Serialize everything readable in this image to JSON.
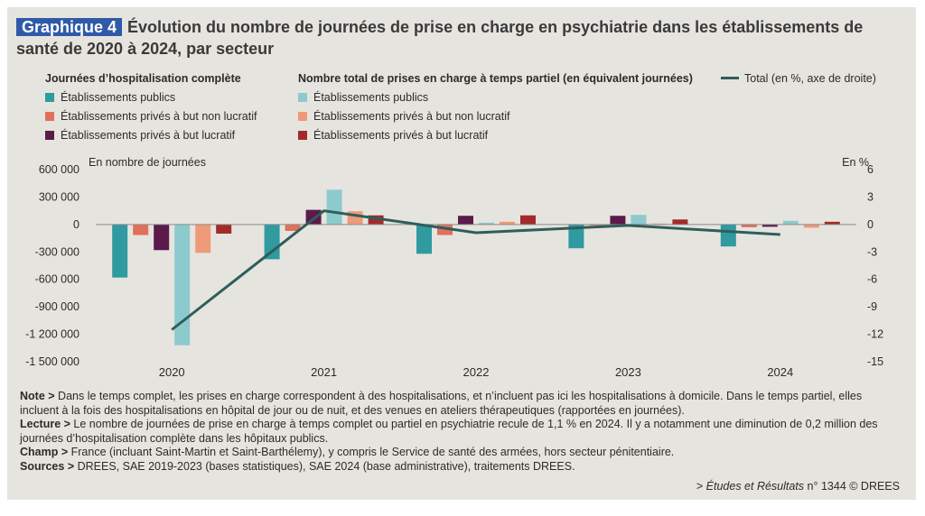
{
  "header": {
    "badge": "Graphique 4",
    "title": "Évolution du nombre de journées de prise en charge en psychiatrie dans les établissements de santé de 2020 à 2024, par secteur"
  },
  "legend": {
    "group1_title": "Journées d’hospitalisation complète",
    "group2_title": "Nombre total de prises en charge à temps partiel (en équivalent journées)",
    "total_label": "Total (en %, axe de droite)"
  },
  "notes": {
    "note_label": "Note >",
    "note_text": "Dans le temps complet, les prises en charge correspondent à des hospitalisations, et n’incluent pas ici les hospitalisations à domicile. Dans le temps partiel, elles incluent à la fois des hospitalisations en hôpital de jour ou de nuit, et des venues en ateliers thérapeutiques (rapportées en journées).",
    "lecture_label": "Lecture >",
    "lecture_text": "Le nombre de journées de prise en charge à temps complet ou partiel en psychiatrie recule de 1,1 % en 2024. Il y a notamment une diminution de 0,2 million des journées d’hospitalisation complète dans les hôpitaux publics.",
    "champ_label": "Champ >",
    "champ_text": "France (incluant Saint-Martin et Saint-Barthélemy), y compris le Service de santé des armées, hors secteur pénitentiaire.",
    "sources_label": "Sources >",
    "sources_text": "DREES, SAE 2019-2023 (bases statistiques), SAE 2024 (base administrative), traitements DREES.",
    "ref_prefix": "> ",
    "ref_italic": "Études et Résultats",
    "ref_suffix": " n° 1344 © DREES"
  },
  "chart_data": {
    "type": "bar",
    "left_axis_label": "En nombre de journées",
    "right_axis_label": "En %",
    "categories": [
      "2020",
      "2021",
      "2022",
      "2023",
      "2024"
    ],
    "ylim": [
      -1500000,
      600000
    ],
    "yticks": [
      600000,
      300000,
      0,
      -300000,
      -600000,
      -900000,
      -1200000,
      -1500000
    ],
    "ytick_labels": [
      "600 000",
      "300 000",
      "0",
      "-300 000",
      "-600 000",
      "-900 000",
      "-1 200 000",
      "-1 500 000"
    ],
    "y2lim": [
      -15,
      6
    ],
    "y2ticks": [
      6,
      3,
      0,
      -3,
      -6,
      -9,
      -12,
      -15
    ],
    "y2tick_labels": [
      "6",
      "3",
      "0",
      "-3",
      "-6",
      "-9",
      "-12",
      "-15"
    ],
    "grid": false,
    "series": [
      {
        "name": "Établissements publics",
        "group": "complete",
        "color": "#2f9aa0",
        "values": [
          -580000,
          -380000,
          -320000,
          -260000,
          -240000
        ]
      },
      {
        "name": "Établissements privés à but non lucratif",
        "group": "complete",
        "color": "#e0705a",
        "values": [
          -115000,
          -70000,
          -115000,
          -10000,
          -30000
        ]
      },
      {
        "name": "Établissements privés à but lucratif",
        "group": "complete",
        "color": "#5a1a4a",
        "values": [
          -280000,
          160000,
          95000,
          95000,
          -25000
        ]
      },
      {
        "name": "Établissements publics",
        "group": "partial",
        "color": "#8ccacd",
        "values": [
          -1320000,
          380000,
          20000,
          105000,
          40000
        ]
      },
      {
        "name": "Établissements privés à but non lucratif",
        "group": "partial",
        "color": "#ef9a78",
        "values": [
          -310000,
          145000,
          30000,
          10000,
          -35000
        ]
      },
      {
        "name": "Établissements privés à but lucratif",
        "group": "partial",
        "color": "#a32a2a",
        "values": [
          -100000,
          100000,
          100000,
          55000,
          30000
        ]
      }
    ],
    "line": {
      "name": "Total (en %, axe de droite)",
      "color": "#2e5e5a",
      "values": [
        -11.5,
        1.5,
        -0.9,
        -0.1,
        -1.1
      ]
    }
  }
}
